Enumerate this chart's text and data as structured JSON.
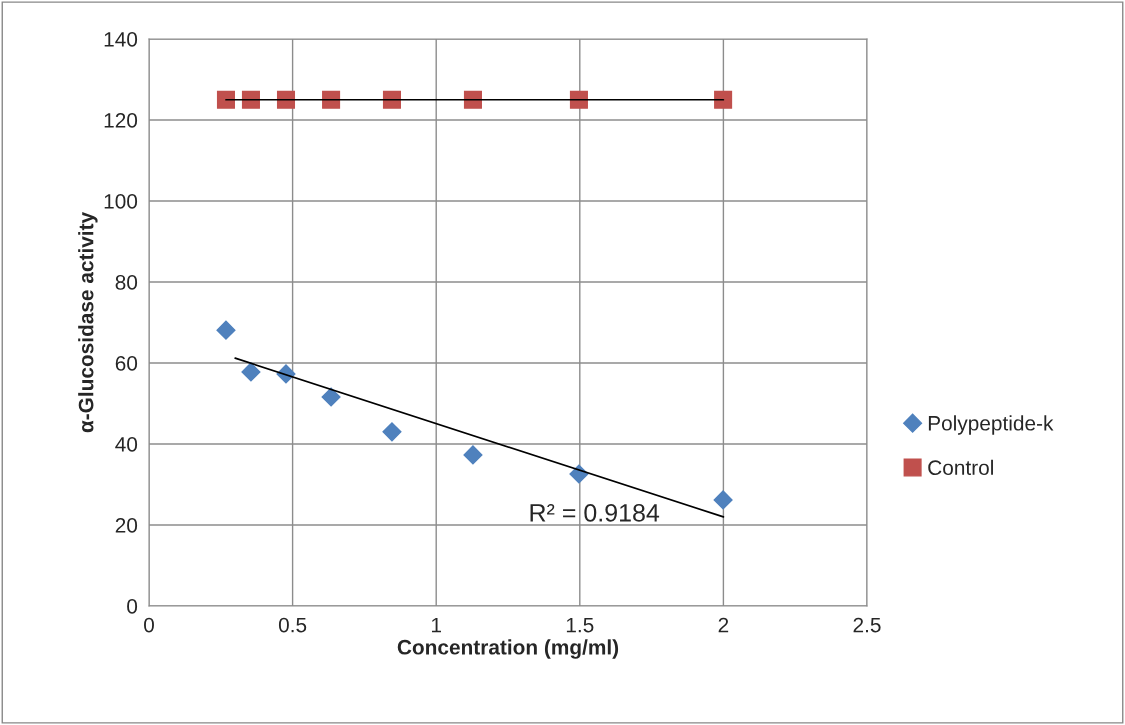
{
  "chart_data": {
    "type": "scatter",
    "xlabel": "Concentration (mg/ml)",
    "ylabel": "α-Glucosidase activity",
    "xlim": [
      0,
      2.5
    ],
    "xticks": [
      0,
      0.5,
      1,
      1.5,
      2,
      2.5
    ],
    "ylim": [
      0,
      140
    ],
    "yticks": [
      0,
      20,
      40,
      60,
      80,
      100,
      120,
      140
    ],
    "grid": true,
    "legend": "right",
    "series": [
      {
        "name": "Polypeptide-k",
        "color": "#4f81bd",
        "marker": "diamond",
        "x": [
          0.268,
          0.355,
          0.477,
          0.634,
          0.846,
          1.128,
          1.497,
          1.999
        ],
        "values": [
          68.1,
          57.8,
          57.3,
          51.6,
          43,
          37.3,
          32.6,
          26.2
        ]
      },
      {
        "name": "Control",
        "color": "#c0504d",
        "marker": "square",
        "x": [
          0.268,
          0.355,
          0.477,
          0.634,
          0.846,
          1.128,
          1.497,
          1.999
        ],
        "values": [
          125,
          125,
          125,
          125,
          125,
          125,
          125,
          125
        ]
      },
      {
        "type": "line",
        "color": "#000000",
        "marker": "none",
        "x": [
          0.3,
          2.0
        ],
        "values": [
          61.2,
          22.0
        ]
      },
      {
        "type": "line",
        "color": "#000000",
        "marker": "none",
        "x": [
          0.268,
          2.0
        ],
        "values": [
          125,
          125
        ]
      }
    ],
    "annotations": [
      "R² = 0.9184"
    ]
  }
}
